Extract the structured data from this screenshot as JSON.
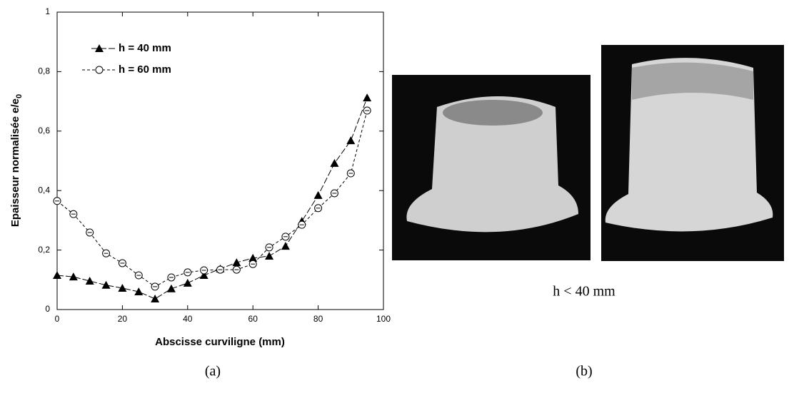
{
  "chart_data": {
    "type": "line",
    "x_label": "Abscisse curviligne (mm)",
    "y_label": "Epaisseur normalisée e/e",
    "y_label_subscript": "0",
    "x": [
      0,
      5,
      10,
      15,
      20,
      25,
      30,
      35,
      40,
      45,
      50,
      55,
      60,
      65,
      70,
      75,
      80,
      85,
      90,
      95
    ],
    "series": [
      {
        "name": "h = 40 mm",
        "color": "#000000",
        "marker": "triangle",
        "line_style": "long-dash",
        "values": [
          0.115,
          0.11,
          0.096,
          0.082,
          0.072,
          0.06,
          0.036,
          0.07,
          0.089,
          0.115,
          0.137,
          0.158,
          0.173,
          0.18,
          0.213,
          0.297,
          0.384,
          0.492,
          0.568,
          0.712
        ]
      },
      {
        "name": "h = 60 mm",
        "color": "#000000",
        "marker": "open-circle",
        "line_style": "dash",
        "values": [
          0.365,
          0.321,
          0.259,
          0.189,
          0.156,
          0.115,
          0.077,
          0.108,
          0.125,
          0.132,
          0.134,
          0.134,
          0.153,
          0.209,
          0.245,
          0.285,
          0.341,
          0.391,
          0.458,
          0.669
        ]
      }
    ],
    "xlim": [
      0,
      100
    ],
    "xticks": [
      0,
      20,
      40,
      60,
      80,
      100
    ],
    "ylim": [
      0,
      1
    ],
    "yticks": [
      0,
      {
        "value": 0.2,
        "label": "0,2"
      },
      {
        "value": 0.4,
        "label": "0,4"
      },
      {
        "value": 0.6,
        "label": "0,6"
      },
      {
        "value": 0.8,
        "label": "0,8"
      },
      1
    ]
  },
  "photo_caption": "h < 40 mm",
  "panel_labels": [
    "(a)",
    "(b)"
  ]
}
